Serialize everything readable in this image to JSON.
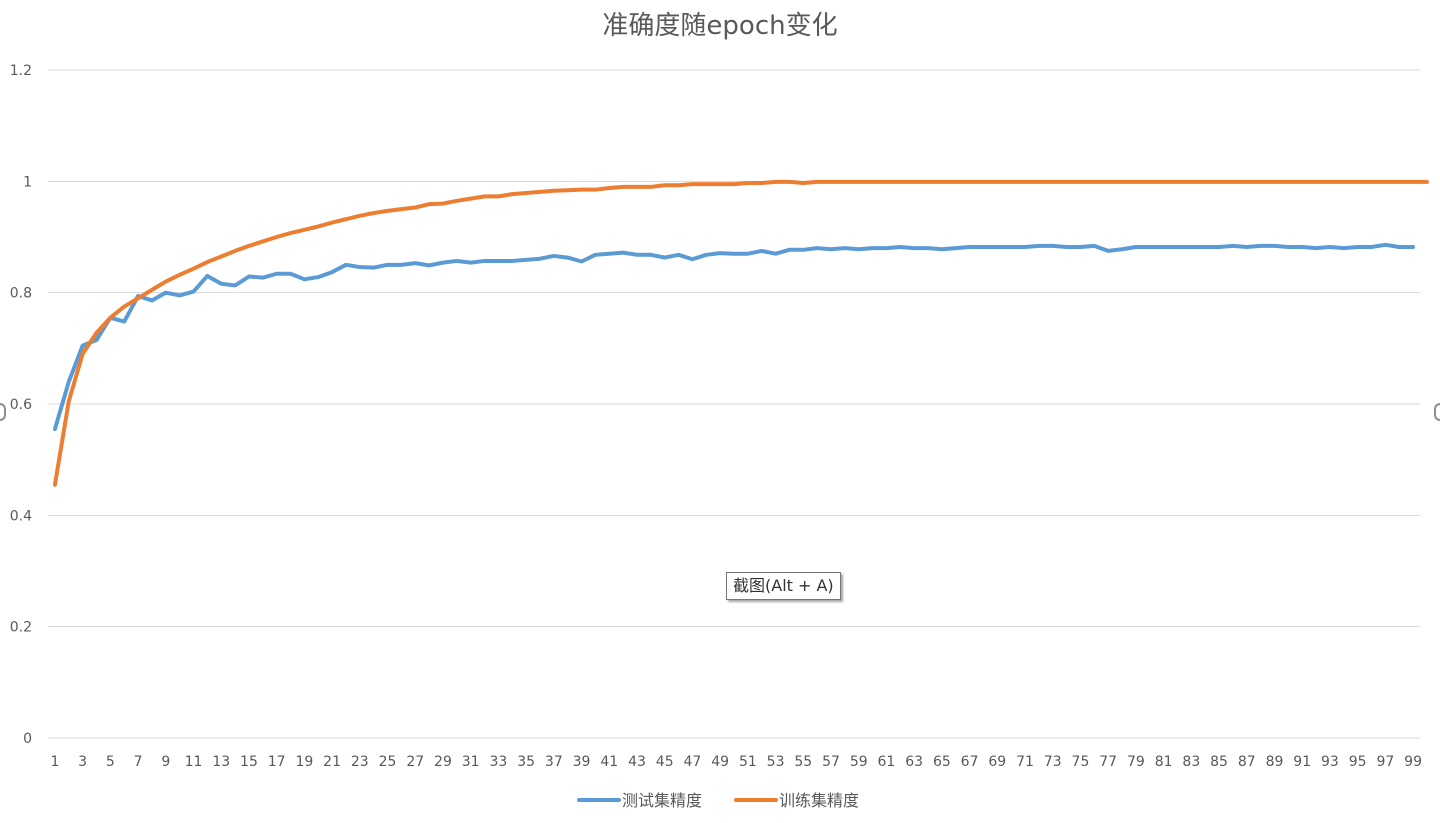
{
  "chart_data": {
    "type": "line",
    "title": "准确度随epoch变化",
    "xlabel": "",
    "ylabel": "",
    "ylim": [
      0,
      1.2
    ],
    "yticks": [
      "0",
      "0.2",
      "0.4",
      "0.6",
      "0.8",
      "1",
      "1.2"
    ],
    "x_tick_labels": [
      "1",
      "3",
      "5",
      "7",
      "9",
      "11",
      "13",
      "15",
      "17",
      "19",
      "21",
      "23",
      "25",
      "27",
      "29",
      "31",
      "33",
      "35",
      "37",
      "39",
      "41",
      "43",
      "45",
      "47",
      "49",
      "51",
      "53",
      "55",
      "57",
      "59",
      "61",
      "63",
      "65",
      "67",
      "69",
      "71",
      "73",
      "75",
      "77",
      "79",
      "81",
      "83",
      "85",
      "87",
      "89",
      "91",
      "93",
      "95",
      "97",
      "99"
    ],
    "grid": true,
    "legend_position": "bottom",
    "series": [
      {
        "name": "测试集精度",
        "color": "#5B9BD5",
        "values": [
          0.555,
          0.64,
          0.705,
          0.715,
          0.755,
          0.748,
          0.794,
          0.786,
          0.8,
          0.795,
          0.802,
          0.83,
          0.816,
          0.813,
          0.829,
          0.827,
          0.834,
          0.834,
          0.824,
          0.828,
          0.837,
          0.85,
          0.846,
          0.845,
          0.85,
          0.85,
          0.853,
          0.849,
          0.854,
          0.857,
          0.854,
          0.857,
          0.857,
          0.857,
          0.859,
          0.861,
          0.866,
          0.863,
          0.856,
          0.868,
          0.87,
          0.872,
          0.868,
          0.868,
          0.863,
          0.868,
          0.86,
          0.868,
          0.871,
          0.87,
          0.87,
          0.875,
          0.87,
          0.877,
          0.877,
          0.88,
          0.878,
          0.88,
          0.878,
          0.88,
          0.88,
          0.882,
          0.88,
          0.88,
          0.878,
          0.88,
          0.882,
          0.882,
          0.882,
          0.882,
          0.882,
          0.884,
          0.884,
          0.882,
          0.882,
          0.884,
          0.875,
          0.878,
          0.882,
          0.882,
          0.882,
          0.882,
          0.882,
          0.882,
          0.882,
          0.884,
          0.882,
          0.884,
          0.884,
          0.882,
          0.882,
          0.88,
          0.882,
          0.88,
          0.882,
          0.882,
          0.886,
          0.882,
          0.882
        ]
      },
      {
        "name": "训练集精度",
        "color": "#ED7D31",
        "values": [
          0.455,
          0.605,
          0.69,
          0.728,
          0.755,
          0.775,
          0.79,
          0.805,
          0.82,
          0.832,
          0.843,
          0.855,
          0.865,
          0.875,
          0.884,
          0.892,
          0.9,
          0.907,
          0.913,
          0.919,
          0.926,
          0.932,
          0.938,
          0.943,
          0.947,
          0.95,
          0.953,
          0.959,
          0.96,
          0.965,
          0.969,
          0.973,
          0.973,
          0.977,
          0.979,
          0.981,
          0.983,
          0.984,
          0.985,
          0.985,
          0.988,
          0.99,
          0.99,
          0.99,
          0.993,
          0.993,
          0.995,
          0.995,
          0.995,
          0.995,
          0.997,
          0.997,
          0.999,
          0.999,
          0.997,
          0.999,
          0.999,
          0.999,
          0.999,
          0.999,
          0.999,
          0.999,
          0.999,
          0.999,
          0.999,
          0.999,
          0.999,
          0.999,
          0.999,
          0.999,
          0.999,
          0.999,
          0.999,
          0.999,
          0.999,
          0.999,
          0.999,
          0.999,
          0.999,
          0.999,
          0.999,
          0.999,
          0.999,
          0.999,
          0.999,
          0.999,
          0.999,
          0.999,
          0.999,
          0.999,
          0.999,
          0.999,
          0.999,
          0.999,
          0.999,
          0.999,
          0.999,
          0.999,
          0.999,
          0.999
        ]
      }
    ]
  },
  "tooltip": {
    "text": "截图(Alt + A)"
  }
}
